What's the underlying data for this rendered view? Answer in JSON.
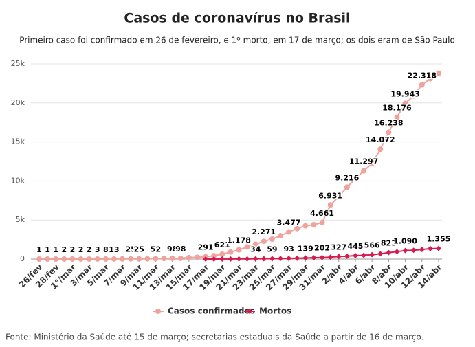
{
  "chart_data": {
    "type": "line",
    "title": "Casos de coronavírus no Brasil",
    "subtitle": "Primeiro caso foi confirmado em 26 de fevereiro, e 1º morto, em 17 de março; os dois eram de São Paulo",
    "source": "Fonte: Ministério da Saúde até 15 de março; secretarias estaduais da Saúde a partir de 16 de março.",
    "categories": [
      "26/fev",
      null,
      "28/fev",
      null,
      "1°/mar",
      null,
      "3/mar",
      null,
      "5/mar",
      null,
      "7/mar",
      null,
      "9/mar",
      null,
      "11/mar",
      null,
      "13/mar",
      null,
      "15/mar",
      null,
      "17/mar",
      null,
      "19/mar",
      null,
      "21/mar",
      null,
      "23/mar",
      null,
      "25/mar",
      null,
      "27/mar",
      null,
      "29/mar",
      null,
      "31/mar",
      null,
      "2/abr",
      null,
      "4/abr",
      null,
      "6/abr",
      null,
      "8/abr",
      null,
      "10/abr",
      null,
      "12/abr",
      null,
      "14/abr"
    ],
    "series": [
      {
        "name": "Casos confirmados",
        "color": "#f0a39d",
        "marker": "circle",
        "values": [
          1,
          1,
          1,
          2,
          2,
          2,
          2,
          3,
          8,
          13,
          19,
          25,
          25,
          34,
          52,
          77,
          98,
          98,
          200,
          234,
          291,
          428,
          621,
          904,
          1178,
          1546,
          1891,
          2271,
          2554,
          2985,
          3477,
          3904,
          4256,
          4400,
          4661,
          6931,
          8000,
          9216,
          10278,
          11297,
          12240,
          14072,
          16238,
          18176,
          19943,
          20900,
          22318,
          23100,
          23800
        ],
        "value_labels": [
          "1",
          "1",
          "1",
          "2",
          "2",
          "2",
          "2",
          "3",
          "8",
          "13",
          null,
          "25",
          "25",
          null,
          "52",
          null,
          "98",
          "98",
          null,
          null,
          "291",
          null,
          "621",
          null,
          "1.178",
          null,
          null,
          "2.271",
          null,
          null,
          "3.477",
          null,
          null,
          null,
          "4.661",
          "6.931",
          null,
          "9.216",
          null,
          "11.297",
          null,
          "14.072",
          "16.238",
          "18.176",
          "19.943",
          null,
          "22.318",
          null,
          null
        ]
      },
      {
        "name": "Mortos",
        "color": "#d81b4e",
        "marker": "diamond",
        "values": [
          null,
          null,
          null,
          null,
          null,
          null,
          null,
          null,
          null,
          null,
          null,
          null,
          null,
          null,
          null,
          null,
          null,
          null,
          null,
          null,
          1,
          4,
          7,
          11,
          18,
          25,
          34,
          46,
          59,
          77,
          93,
          114,
          139,
          165,
          202,
          241,
          327,
          365,
          445,
          486,
          566,
          667,
          823,
          941,
          1090,
          1124,
          1223,
          1328,
          1355
        ],
        "value_labels": [
          null,
          null,
          null,
          null,
          null,
          null,
          null,
          null,
          null,
          null,
          null,
          null,
          null,
          null,
          null,
          null,
          null,
          null,
          null,
          null,
          null,
          null,
          null,
          null,
          null,
          null,
          "34",
          null,
          "59",
          null,
          "93",
          null,
          "139",
          null,
          "202",
          null,
          "327",
          null,
          "445",
          null,
          "566",
          null,
          "823",
          null,
          "1.090",
          null,
          null,
          null,
          "1.355"
        ]
      }
    ],
    "ylim": [
      0,
      25000
    ],
    "yticks": [
      0,
      {
        "value": 5000,
        "label": "5k"
      },
      {
        "value": 10000,
        "label": "10k"
      },
      {
        "value": 15000,
        "label": "15k"
      },
      {
        "value": 20000,
        "label": "20k"
      },
      {
        "value": 25000,
        "label": "25k"
      }
    ],
    "grid": true,
    "legend": "bottom"
  }
}
